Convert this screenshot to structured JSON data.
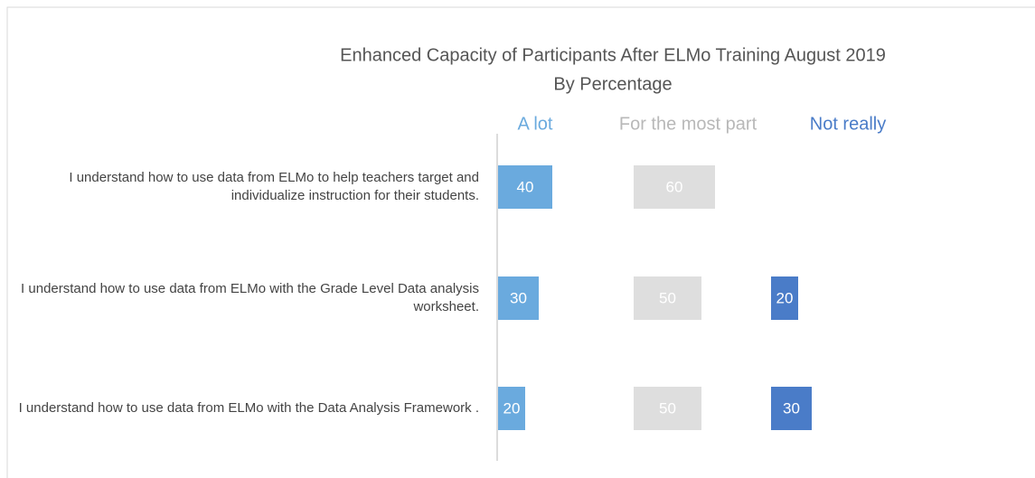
{
  "chart_data": {
    "type": "bar",
    "title": "Enhanced Capacity of Participants After ELMo Training August 2019",
    "subtitle": "By Percentage",
    "categories": [
      "I understand how to use data from ELMo to help teachers target and individualize instruction for their students.",
      "I understand how to use data from ELMo with the Grade Level Data analysis worksheet.",
      "I understand how to use data from ELMo with the Data Analysis Framework ."
    ],
    "series": [
      {
        "name": "A lot",
        "color": "#6aaade",
        "values": [
          40,
          30,
          20
        ]
      },
      {
        "name": "For the most part",
        "color": "#dedede",
        "values": [
          60,
          50,
          50
        ]
      },
      {
        "name": "Not really",
        "color": "#4a7cc8",
        "values": [
          null,
          20,
          30
        ]
      }
    ],
    "xlim": [
      0,
      100
    ]
  }
}
